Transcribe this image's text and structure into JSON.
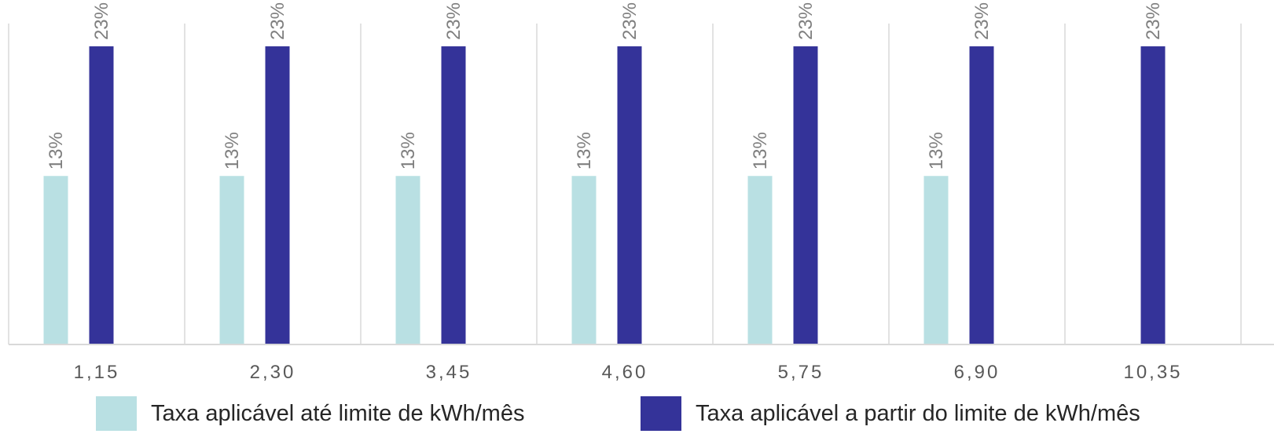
{
  "chart_data": {
    "type": "bar",
    "categories": [
      "1,15",
      "2,30",
      "3,45",
      "4,60",
      "5,75",
      "6,90",
      "10,35"
    ],
    "series": [
      {
        "name": "Taxa aplicável até limite de kWh/mês",
        "color": "#b9e0e3",
        "values": [
          13,
          13,
          13,
          13,
          13,
          13,
          null
        ],
        "labels": [
          "13%",
          "13%",
          "13%",
          "13%",
          "13%",
          "13%",
          ""
        ]
      },
      {
        "name": "Taxa aplicável a partir do limite de kWh/mês",
        "color": "#343399",
        "values": [
          23,
          23,
          23,
          23,
          23,
          23,
          23
        ],
        "labels": [
          "23%",
          "23%",
          "23%",
          "23%",
          "23%",
          "23%",
          "23%"
        ]
      }
    ],
    "title": "",
    "xlabel": "",
    "ylabel": "",
    "ylim": [
      0,
      25
    ],
    "grid": "vertical category separators",
    "legend_position": "bottom"
  }
}
